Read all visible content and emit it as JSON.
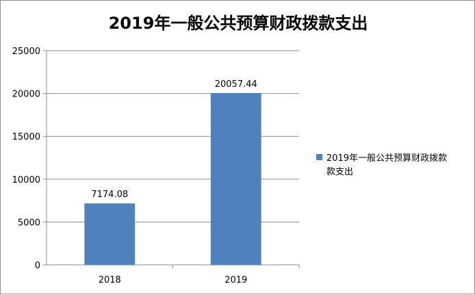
{
  "chart_data": {
    "type": "bar",
    "title": "2019年一般公共预算财政拨款支出",
    "categories": [
      "2018",
      "2019"
    ],
    "series": [
      {
        "name": "2019年一般公共预算财政拨款支出",
        "values": [
          7174.08,
          20057.44
        ]
      }
    ],
    "data_labels": [
      "7174.08",
      "20057.44"
    ],
    "ylim": [
      0,
      25000
    ],
    "yticks": [
      0,
      5000,
      10000,
      15000,
      20000,
      25000
    ],
    "xlabel": "",
    "ylabel": "",
    "grid": true,
    "legend_position": "right",
    "bar_color": "#4f81bd",
    "legend_lines": [
      "2019年一般公共预算财政拨款",
      "款支出"
    ]
  }
}
